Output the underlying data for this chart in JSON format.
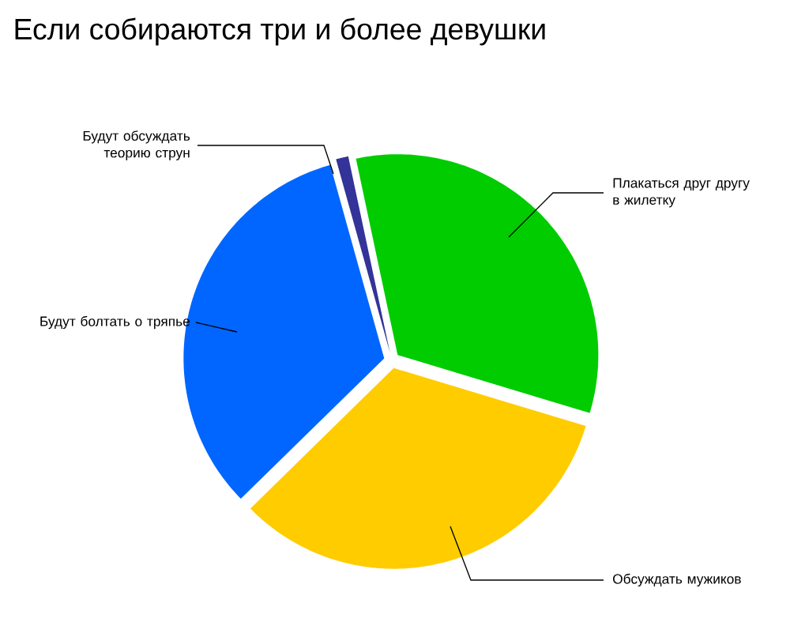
{
  "chart_data": {
    "type": "pie",
    "title": "Если собираются три и более девушки",
    "categories": [
      "Плакаться друг другу в жилетку",
      "Обсуждать мужиков",
      "Будут болтать о тряпье",
      "Будут обсуждать теорию струн"
    ],
    "values": [
      33,
      33,
      33,
      1
    ],
    "colors": [
      "#00cc00",
      "#ffcc00",
      "#0066ff",
      "#333399"
    ]
  }
}
